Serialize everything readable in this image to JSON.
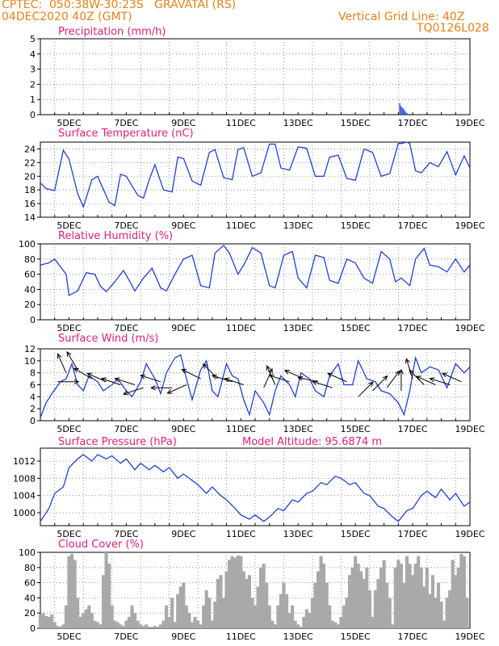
{
  "header": {
    "line1": "CPTEC:  050:38W-30:23S   GRAVATAI (RS)",
    "line2": "04DEC2020 40Z (GMT)",
    "grid_note": "Vertical Grid Line: 40Z",
    "code": "TQ0126L028",
    "model_altitude": "Model Altitude: 95.6874 m"
  },
  "colors": {
    "header": "#e8801a",
    "title": "#e0207a",
    "line": "#1f3fd8",
    "bars": "#a9a9a9",
    "arrow": "#000000"
  },
  "x_ticks": [
    "5DEC",
    "7DEC",
    "9DEC",
    "11DEC",
    "13DEC",
    "15DEC",
    "17DEC",
    "19DEC"
  ],
  "chart_data": [
    {
      "type": "bar",
      "title": "Precipitation (mm/h)",
      "ylim": [
        0,
        5
      ],
      "yticks": [
        "0",
        "1",
        "2",
        "3",
        "4",
        "5"
      ],
      "x_range_days": [
        4.0,
        19.0
      ],
      "x": [
        16.55,
        16.6,
        16.65,
        16.7,
        16.75,
        16.8,
        16.9
      ],
      "values": [
        0.75,
        0.55,
        0.45,
        0.35,
        0.2,
        0.1,
        0.05
      ]
    },
    {
      "type": "line",
      "title": "Surface Temperature (nC)",
      "ylim": [
        14,
        25
      ],
      "yticks": [
        "14",
        "16",
        "18",
        "20",
        "22",
        "24"
      ],
      "x": [
        4.0,
        4.2,
        4.5,
        4.8,
        5.0,
        5.3,
        5.5,
        5.8,
        6.0,
        6.4,
        6.6,
        6.8,
        7.0,
        7.4,
        7.6,
        7.8,
        8.0,
        8.3,
        8.6,
        8.8,
        9.0,
        9.3,
        9.6,
        9.9,
        10.1,
        10.4,
        10.7,
        10.9,
        11.1,
        11.4,
        11.7,
        12.0,
        12.2,
        12.4,
        12.7,
        13.0,
        13.3,
        13.6,
        13.9,
        14.1,
        14.4,
        14.7,
        15.0,
        15.3,
        15.6,
        15.9,
        16.2,
        16.5,
        16.6,
        16.8,
        16.9,
        17.1,
        17.3,
        17.6,
        17.9,
        18.2,
        18.5,
        18.8,
        19.0
      ],
      "values": [
        19.0,
        18.2,
        17.9,
        23.8,
        22.5,
        17.5,
        15.5,
        19.5,
        20.0,
        16.2,
        15.7,
        20.3,
        20.0,
        17.2,
        16.8,
        19.5,
        21.7,
        18.0,
        17.7,
        22.8,
        22.6,
        19.3,
        18.7,
        23.5,
        23.9,
        19.8,
        19.5,
        23.9,
        24.2,
        20.0,
        20.5,
        24.7,
        24.7,
        21.2,
        20.9,
        24.3,
        24.1,
        20.0,
        20.0,
        22.8,
        23.1,
        19.7,
        19.4,
        24.0,
        23.5,
        20.0,
        20.4,
        24.8,
        24.8,
        25.0,
        24.8,
        20.8,
        20.5,
        22.0,
        21.4,
        23.6,
        20.2,
        23.0,
        21.2
      ]
    },
    {
      "type": "line",
      "title": "Relative Humidity (%)",
      "ylim": [
        0,
        100
      ],
      "yticks": [
        "0",
        "20",
        "40",
        "60",
        "80",
        "100"
      ],
      "x": [
        4.0,
        4.3,
        4.5,
        4.9,
        5.0,
        5.3,
        5.6,
        5.9,
        6.1,
        6.3,
        6.6,
        6.9,
        7.1,
        7.3,
        7.6,
        7.9,
        8.2,
        8.4,
        8.7,
        9.0,
        9.3,
        9.6,
        9.9,
        10.1,
        10.4,
        10.6,
        10.9,
        11.1,
        11.4,
        11.7,
        12.0,
        12.2,
        12.5,
        12.8,
        13.0,
        13.3,
        13.6,
        13.9,
        14.1,
        14.4,
        14.7,
        15.0,
        15.3,
        15.6,
        15.9,
        16.2,
        16.4,
        16.6,
        16.9,
        17.1,
        17.4,
        17.6,
        17.9,
        18.2,
        18.5,
        18.8,
        19.0
      ],
      "values": [
        72,
        75,
        80,
        60,
        32,
        38,
        62,
        60,
        44,
        37,
        50,
        65,
        52,
        38,
        55,
        68,
        42,
        38,
        60,
        80,
        85,
        45,
        42,
        88,
        98,
        88,
        60,
        72,
        95,
        88,
        45,
        42,
        85,
        90,
        55,
        42,
        85,
        82,
        52,
        48,
        80,
        75,
        55,
        48,
        90,
        80,
        50,
        55,
        45,
        80,
        94,
        72,
        70,
        63,
        80,
        63,
        72
      ]
    },
    {
      "type": "line",
      "title": "Surface Wind (m/s)",
      "ylim": [
        0,
        12
      ],
      "yticks": [
        "0",
        "2",
        "4",
        "6",
        "8",
        "10",
        "12"
      ],
      "x": [
        4.0,
        4.2,
        4.4,
        4.7,
        4.9,
        5.1,
        5.3,
        5.5,
        5.7,
        6.0,
        6.2,
        6.5,
        6.7,
        7.0,
        7.2,
        7.5,
        7.7,
        8.0,
        8.2,
        8.4,
        8.7,
        8.9,
        9.1,
        9.3,
        9.6,
        9.8,
        10.0,
        10.2,
        10.5,
        10.7,
        10.9,
        11.1,
        11.3,
        11.5,
        11.8,
        12.0,
        12.2,
        12.4,
        12.7,
        12.9,
        13.1,
        13.4,
        13.6,
        13.9,
        14.1,
        14.4,
        14.6,
        14.9,
        15.1,
        15.4,
        15.7,
        15.9,
        16.2,
        16.5,
        16.7,
        16.9,
        17.1,
        17.3,
        17.6,
        17.9,
        18.2,
        18.5,
        18.8,
        19.0
      ],
      "values": [
        0.5,
        3.0,
        4.5,
        6.5,
        7.0,
        9.5,
        6.0,
        5.0,
        7.5,
        6.5,
        5.0,
        6.0,
        7.0,
        5.0,
        4.0,
        6.5,
        9.5,
        7.0,
        4.5,
        8.0,
        10.5,
        11.0,
        7.0,
        3.5,
        8.5,
        10.0,
        5.0,
        4.0,
        9.5,
        7.5,
        7.0,
        3.5,
        1.0,
        5.0,
        3.0,
        1.0,
        5.0,
        7.5,
        6.0,
        4.0,
        8.0,
        7.0,
        5.0,
        4.0,
        7.5,
        9.5,
        6.0,
        6.0,
        10.0,
        7.0,
        6.5,
        5.0,
        4.5,
        3.0,
        1.0,
        5.0,
        10.5,
        8.0,
        9.0,
        8.5,
        5.5,
        9.5,
        8.0,
        9.0
      ]
    },
    {
      "type": "line",
      "title": "Surface Pressure (hPa)",
      "ylim": [
        997,
        1015
      ],
      "yticks": [
        "1000",
        "1004",
        "1008",
        "1012"
      ],
      "x": [
        4.0,
        4.3,
        4.5,
        4.8,
        5.0,
        5.3,
        5.5,
        5.8,
        6.0,
        6.3,
        6.5,
        6.8,
        7.0,
        7.3,
        7.5,
        7.8,
        8.0,
        8.3,
        8.5,
        8.8,
        9.0,
        9.3,
        9.5,
        9.8,
        10.0,
        10.3,
        10.5,
        10.8,
        11.0,
        11.3,
        11.5,
        11.8,
        12.0,
        12.3,
        12.5,
        12.8,
        13.0,
        13.3,
        13.5,
        13.8,
        14.0,
        14.3,
        14.5,
        14.8,
        15.0,
        15.3,
        15.5,
        15.8,
        16.0,
        16.3,
        16.5,
        16.8,
        17.0,
        17.3,
        17.5,
        17.8,
        18.0,
        18.3,
        18.5,
        18.8,
        19.0
      ],
      "values": [
        998.0,
        1001.0,
        1004.5,
        1006.0,
        1010.5,
        1012.5,
        1013.5,
        1012.0,
        1013.5,
        1012.5,
        1013.2,
        1011.5,
        1012.5,
        1010.0,
        1011.5,
        1010.0,
        1011.0,
        1009.5,
        1010.5,
        1008.0,
        1009.0,
        1007.5,
        1006.5,
        1004.5,
        1006.0,
        1004.0,
        1003.0,
        1001.0,
        999.5,
        998.5,
        999.5,
        998.0,
        999.0,
        1001.0,
        1000.5,
        1003.0,
        1002.5,
        1004.5,
        1005.0,
        1007.0,
        1006.5,
        1008.5,
        1008.0,
        1006.5,
        1007.0,
        1004.5,
        1004.0,
        1001.5,
        1001.0,
        999.0,
        998.0,
        1000.5,
        1001.0,
        1004.0,
        1005.0,
        1003.5,
        1005.5,
        1003.0,
        1004.5,
        1001.5,
        1002.5
      ]
    },
    {
      "type": "bar",
      "title": "Cloud Cover (%)",
      "ylim": [
        0,
        100
      ],
      "yticks": [
        "0",
        "20",
        "40",
        "60",
        "80",
        "100"
      ],
      "x_range_days": [
        4.0,
        19.0
      ],
      "x": [
        4.0,
        4.1,
        4.2,
        4.3,
        4.4,
        4.5,
        4.6,
        4.7,
        4.8,
        4.9,
        5.0,
        5.1,
        5.2,
        5.3,
        5.4,
        5.5,
        5.6,
        5.7,
        5.8,
        5.9,
        6.0,
        6.1,
        6.2,
        6.3,
        6.4,
        6.5,
        6.6,
        6.7,
        6.8,
        6.9,
        7.0,
        7.1,
        7.2,
        7.3,
        7.4,
        7.5,
        7.6,
        7.7,
        7.8,
        7.9,
        8.0,
        8.1,
        8.2,
        8.3,
        8.4,
        8.5,
        8.6,
        8.7,
        8.8,
        8.9,
        9.0,
        9.1,
        9.2,
        9.3,
        9.4,
        9.5,
        9.6,
        9.7,
        9.8,
        9.9,
        10.0,
        10.1,
        10.2,
        10.3,
        10.4,
        10.5,
        10.6,
        10.7,
        10.8,
        10.9,
        11.0,
        11.1,
        11.2,
        11.3,
        11.4,
        11.5,
        11.6,
        11.7,
        11.8,
        11.9,
        12.0,
        12.1,
        12.2,
        12.3,
        12.4,
        12.5,
        12.6,
        12.7,
        12.8,
        12.9,
        13.0,
        13.1,
        13.2,
        13.3,
        13.4,
        13.5,
        13.6,
        13.7,
        13.8,
        13.9,
        14.0,
        14.1,
        14.2,
        14.3,
        14.4,
        14.5,
        14.6,
        14.7,
        14.8,
        14.9,
        15.0,
        15.1,
        15.2,
        15.3,
        15.4,
        15.5,
        15.6,
        15.7,
        15.8,
        15.9,
        16.0,
        16.1,
        16.2,
        16.3,
        16.4,
        16.5,
        16.6,
        16.7,
        16.8,
        16.9,
        17.0,
        17.1,
        17.2,
        17.3,
        17.4,
        17.5,
        17.6,
        17.7,
        17.8,
        17.9,
        18.0,
        18.1,
        18.2,
        18.3,
        18.4,
        18.5,
        18.6,
        18.7,
        18.8,
        18.9
      ],
      "values": [
        18,
        20,
        16,
        15,
        18,
        8,
        3,
        2,
        5,
        30,
        95,
        98,
        90,
        40,
        15,
        20,
        25,
        30,
        20,
        10,
        8,
        5,
        70,
        100,
        85,
        30,
        10,
        8,
        5,
        3,
        10,
        15,
        30,
        20,
        10,
        5,
        3,
        5,
        2,
        0,
        2,
        2,
        5,
        10,
        30,
        15,
        40,
        8,
        45,
        55,
        60,
        30,
        20,
        8,
        15,
        10,
        5,
        30,
        50,
        40,
        10,
        35,
        65,
        70,
        40,
        75,
        90,
        95,
        93,
        96,
        95,
        75,
        65,
        70,
        40,
        30,
        55,
        80,
        85,
        60,
        30,
        10,
        5,
        30,
        45,
        60,
        45,
        20,
        30,
        10,
        5,
        2,
        15,
        25,
        20,
        40,
        60,
        75,
        95,
        85,
        60,
        30,
        10,
        8,
        5,
        15,
        30,
        40,
        70,
        80,
        95,
        85,
        75,
        65,
        80,
        50,
        15,
        50,
        65,
        80,
        90,
        60,
        40,
        5,
        80,
        90,
        85,
        60,
        95,
        85,
        70,
        85,
        95,
        80,
        55,
        80,
        45,
        70,
        40,
        60,
        35,
        10,
        40,
        50,
        90,
        70,
        80,
        98,
        95,
        40
      ]
    }
  ],
  "wind_vectors": [
    {
      "day": 4.6,
      "speed": 6.5,
      "u": 1.0,
      "v": 0.0
    },
    {
      "day": 4.9,
      "speed": 8.0,
      "u": -0.4,
      "v": 0.9
    },
    {
      "day": 5.3,
      "speed": 8.5,
      "u": -0.5,
      "v": 0.85
    },
    {
      "day": 5.8,
      "speed": 7.0,
      "u": -0.85,
      "v": 0.5
    },
    {
      "day": 6.3,
      "speed": 6.5,
      "u": -0.9,
      "v": 0.4
    },
    {
      "day": 6.8,
      "speed": 6.0,
      "u": -0.9,
      "v": 0.3
    },
    {
      "day": 7.3,
      "speed": 6.0,
      "u": -0.95,
      "v": 0.3
    },
    {
      "day": 7.6,
      "speed": 5.5,
      "u": -0.95,
      "v": -0.3
    },
    {
      "day": 8.2,
      "speed": 6.5,
      "u": -0.95,
      "v": 0.3
    },
    {
      "day": 8.6,
      "speed": 5.5,
      "u": -1.0,
      "v": 0.0
    },
    {
      "day": 9.1,
      "speed": 6.0,
      "u": -0.9,
      "v": -0.4
    },
    {
      "day": 9.6,
      "speed": 7.0,
      "u": -0.9,
      "v": 0.45
    },
    {
      "day": 10.2,
      "speed": 7.0,
      "u": -0.7,
      "v": 0.7
    },
    {
      "day": 10.7,
      "speed": 6.5,
      "u": -0.95,
      "v": 0.3
    },
    {
      "day": 11.1,
      "speed": 6.0,
      "u": -0.9,
      "v": 0.3
    },
    {
      "day": 11.8,
      "speed": 5.5,
      "u": 0.4,
      "v": 0.9
    },
    {
      "day": 12.2,
      "speed": 6.0,
      "u": -0.4,
      "v": 0.9
    },
    {
      "day": 12.7,
      "speed": 6.5,
      "u": -0.95,
      "v": 0.3
    },
    {
      "day": 13.2,
      "speed": 7.0,
      "u": -0.9,
      "v": 0.4
    },
    {
      "day": 13.7,
      "speed": 6.5,
      "u": -0.95,
      "v": 0.2
    },
    {
      "day": 14.2,
      "speed": 5.5,
      "u": -0.95,
      "v": 0.3
    },
    {
      "day": 14.7,
      "speed": 6.5,
      "u": -0.9,
      "v": 0.4
    },
    {
      "day": 15.1,
      "speed": 4.0,
      "u": 0.7,
      "v": 0.7
    },
    {
      "day": 15.6,
      "speed": 5.0,
      "u": 0.7,
      "v": 0.7
    },
    {
      "day": 16.1,
      "speed": 5.5,
      "u": 0.6,
      "v": 0.8
    },
    {
      "day": 16.6,
      "speed": 5.0,
      "u": 0.0,
      "v": 1.0
    },
    {
      "day": 17.0,
      "speed": 7.0,
      "u": -0.3,
      "v": 0.95
    },
    {
      "day": 17.4,
      "speed": 6.0,
      "u": -0.7,
      "v": 0.7
    },
    {
      "day": 17.8,
      "speed": 6.0,
      "u": -0.9,
      "v": 0.4
    },
    {
      "day": 18.3,
      "speed": 6.0,
      "u": -0.95,
      "v": 0.3
    },
    {
      "day": 18.7,
      "speed": 6.5,
      "u": -0.9,
      "v": 0.4
    }
  ]
}
